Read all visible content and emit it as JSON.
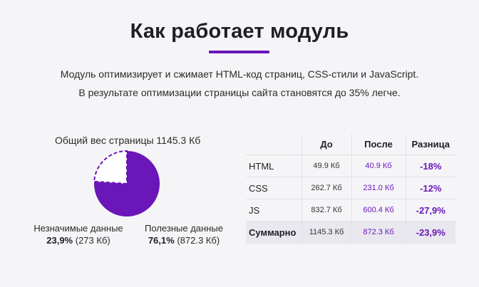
{
  "header": {
    "title": "Как работает модуль",
    "desc_line1": "Модуль оптимизирует и сжимает HTML-код страниц, CSS-стили и JavaScript.",
    "desc_line2": "В результате оптимизации страницы сайта становятся до 35% легче."
  },
  "pie": {
    "caption": "Общий вес страницы 1145.3 Кб",
    "unused": {
      "label": "Незначимые данные",
      "pct": "23,9%",
      "size": "(273 Кб)",
      "fraction": 0.239
    },
    "useful": {
      "label": "Полезные данные",
      "pct": "76,1%",
      "size": "(872.3 Кб)",
      "fraction": 0.761
    },
    "colors": {
      "useful": "#6a16b8",
      "unused_border": "#6a16b8",
      "unused_fill": "#ffffff"
    }
  },
  "table": {
    "headers": [
      "",
      "До",
      "После",
      "Разница"
    ],
    "rows": [
      {
        "name": "HTML",
        "before": "49.9 Кб",
        "after": "40.9 Кб",
        "diff": "-18%"
      },
      {
        "name": "CSS",
        "before": "262.7 Кб",
        "after": "231.0 Кб",
        "diff": "-12%"
      },
      {
        "name": "JS",
        "before": "832.7 Кб",
        "after": "600.4 Кб",
        "diff": "-27,9%"
      },
      {
        "name": "Суммарно",
        "before": "1145.3 Кб",
        "after": "872.3 Кб",
        "diff": "-23,9%"
      }
    ]
  },
  "colors": {
    "accent": "#6a16b8",
    "background": "#f5f5f8"
  }
}
